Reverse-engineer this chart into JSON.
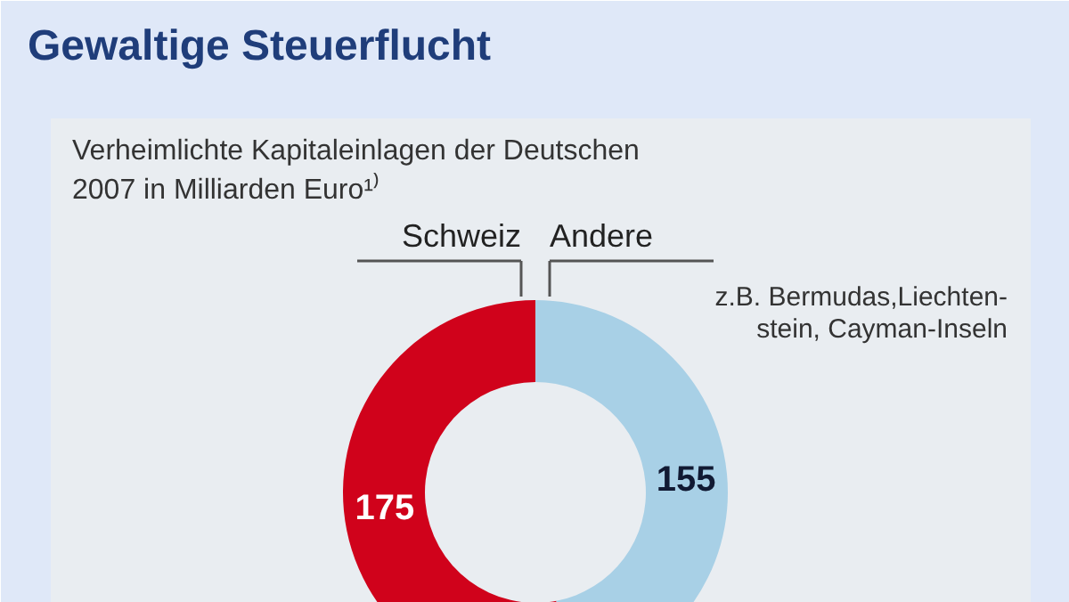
{
  "chart_data": {
    "type": "donut",
    "title": "Gewaltige Steuerflucht",
    "subtitle": "Verheimlichte Kapitaleinlagen der Deutschen\n2007 in Milliarden Euro¹⁾",
    "categories": [
      "Schweiz",
      "Andere"
    ],
    "values": [
      175,
      155
    ],
    "colors": [
      "#d0021b",
      "#a8d0e6"
    ],
    "data_labels": true,
    "annotations": [
      "z.B. Bermudas,Liechten-\nstein, Cayman-Inseln"
    ]
  }
}
